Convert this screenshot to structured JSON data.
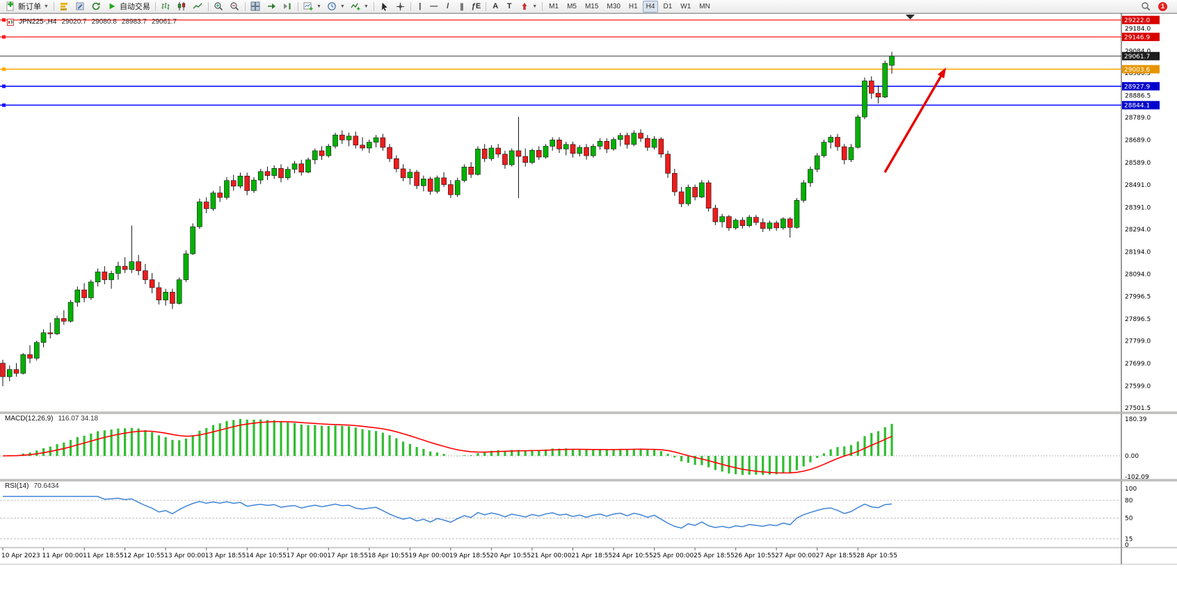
{
  "toolbar": {
    "new_order": "新订单",
    "algo_trading": "自动交易",
    "timeframes": [
      "M1",
      "M5",
      "M15",
      "M30",
      "H1",
      "H4",
      "D1",
      "W1",
      "MN"
    ],
    "active_timeframe": "H4",
    "notification_count": "1"
  },
  "chart": {
    "title": "JPN225-,H4",
    "ohlc": {
      "open": "29020.7",
      "high": "29080.8",
      "low": "28983.7",
      "close": "29061.7"
    },
    "macd_label": "MACD(12,26,9)",
    "macd_values": "116.07 34.18",
    "rsi_label": "RSI(14)",
    "rsi_value": "70.6434"
  },
  "chart_data": {
    "type": "candlestick",
    "symbol": "JPN225-",
    "timeframe": "H4",
    "current_price": 29061.7,
    "price_axis": {
      "top_price": 29252,
      "bottom_price": 27483,
      "ticks": [
        "29184.0",
        "29084.0",
        "28986.5",
        "28886.5",
        "28789.0",
        "28689.0",
        "28589.0",
        "28491.0",
        "28391.0",
        "28294.0",
        "28194.0",
        "28094.0",
        "27996.5",
        "27896.5",
        "27799.0",
        "27699.0",
        "27599.0",
        "27501.5"
      ],
      "badges": [
        {
          "label": "29222.0",
          "color": "#d90000"
        },
        {
          "label": "29146.9",
          "color": "#d90000"
        },
        {
          "label": "29061.7",
          "color": "#1c1c1c"
        },
        {
          "label": "29003.6",
          "color": "#e69500"
        },
        {
          "label": "28927.9",
          "color": "#0000cc"
        },
        {
          "label": "28844.1",
          "color": "#0000cc"
        }
      ]
    },
    "h_lines": [
      {
        "price": 29222.0,
        "color": "#ff1a1a",
        "width": 1.2,
        "handle": true
      },
      {
        "price": 29146.9,
        "color": "#ff1a1a",
        "width": 1.2,
        "handle": true
      },
      {
        "price": 29061.7,
        "color": "#3a3a3a",
        "width": 0.9,
        "handle": false
      },
      {
        "price": 29003.6,
        "color": "#ffaa00",
        "width": 1.6,
        "handle": true
      },
      {
        "price": 28927.9,
        "color": "#1414ff",
        "width": 1.6,
        "handle": true
      },
      {
        "price": 28844.1,
        "color": "#1414ff",
        "width": 1.6,
        "handle": true
      }
    ],
    "macd_axis": [
      "180.39",
      "0.00",
      "-102.09"
    ],
    "rsi_axis": [
      "100",
      "80",
      "50",
      "15",
      "0"
    ],
    "rsi_levels": [
      80,
      50,
      15
    ],
    "colors": {
      "bull": "#00b200",
      "bear": "#ee1c1c",
      "wick": "#111111",
      "macd_hist": "#2fbe2f",
      "macd_signal": "#ff0000",
      "rsi_line": "#3f83d6"
    },
    "time_labels": [
      {
        "i": 0,
        "t": "10 Apr 2023"
      },
      {
        "i": 6,
        "t": "11 Apr 00:00"
      },
      {
        "i": 12,
        "t": "11 Apr 18:55"
      },
      {
        "i": 18,
        "t": "12 Apr 10:55"
      },
      {
        "i": 24,
        "t": "13 Apr 00:00"
      },
      {
        "i": 30,
        "t": "13 Apr 18:55"
      },
      {
        "i": 36,
        "t": "14 Apr 10:55"
      },
      {
        "i": 42,
        "t": "17 Apr 00:00"
      },
      {
        "i": 48,
        "t": "17 Apr 18:55"
      },
      {
        "i": 54,
        "t": "18 Apr 10:55"
      },
      {
        "i": 60,
        "t": "19 Apr 00:00"
      },
      {
        "i": 66,
        "t": "19 Apr 18:55"
      },
      {
        "i": 72,
        "t": "20 Apr 10:55"
      },
      {
        "i": 78,
        "t": "21 Apr 00:00"
      },
      {
        "i": 84,
        "t": "21 Apr 18:55"
      },
      {
        "i": 90,
        "t": "24 Apr 10:55"
      },
      {
        "i": 96,
        "t": "25 Apr 00:00"
      },
      {
        "i": 102,
        "t": "25 Apr 18:55"
      },
      {
        "i": 108,
        "t": "26 Apr 10:55"
      },
      {
        "i": 114,
        "t": "27 Apr 00:00"
      },
      {
        "i": 120,
        "t": "27 Apr 18:55"
      },
      {
        "i": 126,
        "t": "28 Apr 10:55"
      }
    ],
    "annotations": {
      "arrow": {
        "from": [
          1272,
          248
        ],
        "to": [
          1360,
          97
        ],
        "color": "#e60000",
        "width": 3.4
      }
    },
    "candles": [
      [
        27700,
        27715,
        27598,
        27640
      ],
      [
        27640,
        27690,
        27620,
        27672
      ],
      [
        27672,
        27700,
        27640,
        27655
      ],
      [
        27655,
        27745,
        27650,
        27738
      ],
      [
        27738,
        27780,
        27700,
        27722
      ],
      [
        27722,
        27800,
        27712,
        27792
      ],
      [
        27792,
        27850,
        27770,
        27835
      ],
      [
        27835,
        27880,
        27810,
        27830
      ],
      [
        27830,
        27910,
        27825,
        27898
      ],
      [
        27898,
        27935,
        27870,
        27886
      ],
      [
        27886,
        27980,
        27880,
        27970
      ],
      [
        27970,
        28040,
        27950,
        28025
      ],
      [
        28025,
        28055,
        27970,
        27990
      ],
      [
        27990,
        28070,
        27980,
        28060
      ],
      [
        28060,
        28120,
        28040,
        28105
      ],
      [
        28105,
        28130,
        28050,
        28070
      ],
      [
        28070,
        28110,
        28030,
        28098
      ],
      [
        28098,
        28150,
        28070,
        28130
      ],
      [
        28130,
        28170,
        28100,
        28115
      ],
      [
        28115,
        28310,
        28100,
        28150
      ],
      [
        28150,
        28180,
        28090,
        28110
      ],
      [
        28110,
        28140,
        28050,
        28070
      ],
      [
        28070,
        28100,
        28010,
        28035
      ],
      [
        28035,
        28060,
        27960,
        27980
      ],
      [
        27980,
        28030,
        27955,
        28015
      ],
      [
        28015,
        28030,
        27940,
        27965
      ],
      [
        27965,
        28080,
        27960,
        28070
      ],
      [
        28070,
        28200,
        28060,
        28185
      ],
      [
        28185,
        28320,
        28180,
        28305
      ],
      [
        28305,
        28430,
        28295,
        28415
      ],
      [
        28415,
        28435,
        28365,
        28385
      ],
      [
        28385,
        28465,
        28375,
        28455
      ],
      [
        28455,
        28485,
        28415,
        28435
      ],
      [
        28435,
        28525,
        28425,
        28510
      ],
      [
        28510,
        28535,
        28465,
        28485
      ],
      [
        28485,
        28545,
        28475,
        28530
      ],
      [
        28530,
        28545,
        28445,
        28465
      ],
      [
        28465,
        28525,
        28455,
        28512
      ],
      [
        28512,
        28562,
        28494,
        28550
      ],
      [
        28550,
        28572,
        28512,
        28532
      ],
      [
        28532,
        28577,
        28517,
        28564
      ],
      [
        28564,
        28582,
        28502,
        28522
      ],
      [
        28522,
        28572,
        28512,
        28560
      ],
      [
        28560,
        28597,
        28542,
        28584
      ],
      [
        28584,
        28602,
        28532,
        28547
      ],
      [
        28547,
        28612,
        28542,
        28602
      ],
      [
        28602,
        28652,
        28582,
        28642
      ],
      [
        28642,
        28662,
        28602,
        28620
      ],
      [
        28620,
        28672,
        28612,
        28662
      ],
      [
        28662,
        28722,
        28652,
        28712
      ],
      [
        28712,
        28732,
        28672,
        28690
      ],
      [
        28690,
        28722,
        28662,
        28707
      ],
      [
        28707,
        28727,
        28652,
        28667
      ],
      [
        28667,
        28702,
        28642,
        28654
      ],
      [
        28654,
        28692,
        28632,
        28680
      ],
      [
        28680,
        28712,
        28657,
        28700
      ],
      [
        28700,
        28717,
        28642,
        28657
      ],
      [
        28657,
        28672,
        28592,
        28607
      ],
      [
        28607,
        28622,
        28547,
        28562
      ],
      [
        28562,
        28582,
        28507,
        28522
      ],
      [
        28522,
        28562,
        28492,
        28547
      ],
      [
        28547,
        28557,
        28472,
        28487
      ],
      [
        28487,
        28532,
        28462,
        28517
      ],
      [
        28517,
        28527,
        28447,
        28462
      ],
      [
        28462,
        28532,
        28452,
        28522
      ],
      [
        28522,
        28547,
        28482,
        28492
      ],
      [
        28492,
        28512,
        28432,
        28447
      ],
      [
        28447,
        28522,
        28437,
        28510
      ],
      [
        28510,
        28582,
        28502,
        28570
      ],
      [
        28570,
        28592,
        28522,
        28537
      ],
      [
        28537,
        28662,
        28532,
        28650
      ],
      [
        28650,
        28672,
        28592,
        28607
      ],
      [
        28607,
        28667,
        28597,
        28654
      ],
      [
        28654,
        28672,
        28612,
        28627
      ],
      [
        28627,
        28642,
        28562,
        28580
      ],
      [
        28580,
        28652,
        28572,
        28642
      ],
      [
        28642,
        28792,
        28432,
        28617
      ],
      [
        28617,
        28652,
        28572,
        28590
      ],
      [
        28590,
        28652,
        28582,
        28644
      ],
      [
        28644,
        28662,
        28602,
        28614
      ],
      [
        28614,
        28672,
        28607,
        28662
      ],
      [
        28662,
        28702,
        28642,
        28690
      ],
      [
        28690,
        28702,
        28632,
        28650
      ],
      [
        28650,
        28682,
        28622,
        28670
      ],
      [
        28670,
        28682,
        28612,
        28630
      ],
      [
        28630,
        28667,
        28617,
        28657
      ],
      [
        28657,
        28672,
        28602,
        28620
      ],
      [
        28620,
        28672,
        28612,
        28662
      ],
      [
        28662,
        28697,
        28647,
        28684
      ],
      [
        28684,
        28697,
        28632,
        28650
      ],
      [
        28650,
        28702,
        28642,
        28692
      ],
      [
        28692,
        28722,
        28662,
        28710
      ],
      [
        28710,
        28722,
        28652,
        28670
      ],
      [
        28670,
        28732,
        28662,
        28720
      ],
      [
        28720,
        28737,
        28682,
        28697
      ],
      [
        28697,
        28712,
        28642,
        28657
      ],
      [
        28657,
        28707,
        28647,
        28694
      ],
      [
        28694,
        28702,
        28612,
        28627
      ],
      [
        28627,
        28642,
        28522,
        28542
      ],
      [
        28542,
        28562,
        28442,
        28460
      ],
      [
        28460,
        28482,
        28392,
        28407
      ],
      [
        28407,
        28492,
        28397,
        28480
      ],
      [
        28480,
        28492,
        28422,
        28437
      ],
      [
        28437,
        28512,
        28432,
        28500
      ],
      [
        28500,
        28512,
        28372,
        28387
      ],
      [
        28387,
        28402,
        28312,
        28327
      ],
      [
        28327,
        28362,
        28302,
        28350
      ],
      [
        28350,
        28357,
        28287,
        28300
      ],
      [
        28300,
        28342,
        28292,
        28334
      ],
      [
        28334,
        28347,
        28297,
        28310
      ],
      [
        28310,
        28357,
        28302,
        28347
      ],
      [
        28347,
        28357,
        28312,
        28324
      ],
      [
        28324,
        28342,
        28282,
        28297
      ],
      [
        28297,
        28332,
        28287,
        28322
      ],
      [
        28322,
        28332,
        28287,
        28300
      ],
      [
        28300,
        28347,
        28292,
        28340
      ],
      [
        28340,
        28347,
        28257,
        28302
      ],
      [
        28302,
        28432,
        28297,
        28422
      ],
      [
        28422,
        28512,
        28412,
        28500
      ],
      [
        28500,
        28572,
        28482,
        28560
      ],
      [
        28560,
        28632,
        28547,
        28620
      ],
      [
        28620,
        28692,
        28612,
        28680
      ],
      [
        28680,
        28712,
        28652,
        28702
      ],
      [
        28702,
        28717,
        28642,
        28660
      ],
      [
        28660,
        28672,
        28582,
        28602
      ],
      [
        28602,
        28672,
        28592,
        28657
      ],
      [
        28657,
        28802,
        28652,
        28792
      ],
      [
        28792,
        28967,
        28782,
        28952
      ],
      [
        28952,
        28972,
        28872,
        28897
      ],
      [
        28897,
        28932,
        28852,
        28880
      ],
      [
        28880,
        29042,
        28875,
        29030
      ],
      [
        29020.7,
        29080.8,
        28983.7,
        29061.7
      ]
    ]
  }
}
